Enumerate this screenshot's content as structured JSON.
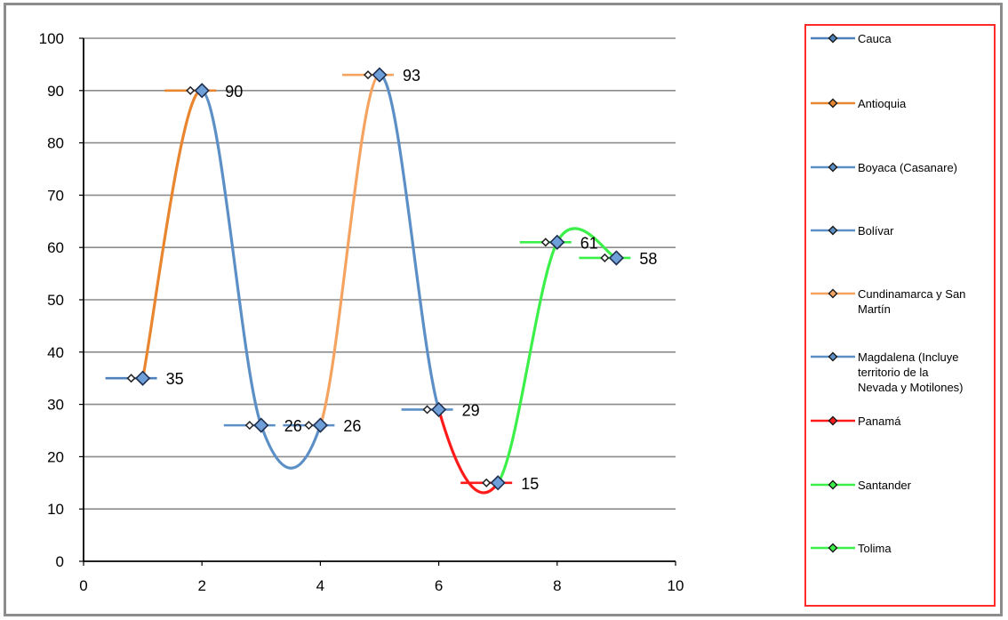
{
  "chart_data": {
    "type": "scatter",
    "title": "",
    "xlabel": "",
    "ylabel": "",
    "xlim": [
      0,
      10
    ],
    "ylim": [
      0,
      100
    ],
    "x_ticks": [
      "0",
      "2",
      "4",
      "6",
      "8",
      "10"
    ],
    "y_ticks": [
      "0",
      "10",
      "20",
      "30",
      "40",
      "50",
      "60",
      "70",
      "80",
      "90",
      "100"
    ],
    "grid": true,
    "smooth_lines": true,
    "legend_position": "right",
    "series": [
      {
        "name": "Cauca",
        "color": "#4f81bd",
        "points": [
          {
            "x": 1,
            "y": 35,
            "label": "35"
          }
        ]
      },
      {
        "name": "Antioquia",
        "color": "#e8852e",
        "points": [
          {
            "x": 2,
            "y": 90,
            "label": "90"
          }
        ]
      },
      {
        "name": "Boyaca (Casanare)",
        "color": "#5b8fc6",
        "points": [
          {
            "x": 3,
            "y": 26,
            "label": "26"
          }
        ]
      },
      {
        "name": "Bolívar",
        "color": "#5b8fc6",
        "points": [
          {
            "x": 4,
            "y": 26,
            "label": "26"
          }
        ]
      },
      {
        "name": "Cundinamarca  y San Martín",
        "color": "#f4a460",
        "points": [
          {
            "x": 5,
            "y": 93,
            "label": "93"
          }
        ]
      },
      {
        "name": "Magdalena (Incluye territorio de la Nevada y Motilones)",
        "color": "#5b8fc6",
        "points": [
          {
            "x": 6,
            "y": 29,
            "label": "29"
          }
        ]
      },
      {
        "name": "Panamá",
        "color": "#ff1a1a",
        "points": [
          {
            "x": 7,
            "y": 15,
            "label": "15"
          }
        ]
      },
      {
        "name": "Santander",
        "color": "#3cf04a",
        "points": [
          {
            "x": 8,
            "y": 61,
            "label": "61"
          }
        ]
      },
      {
        "name": "Tolima",
        "color": "#3cf04a",
        "points": [
          {
            "x": 9,
            "y": 58,
            "label": "58"
          }
        ]
      }
    ],
    "legend_lines": [
      [
        "Cauca"
      ],
      [
        "Antioquia"
      ],
      [
        "Boyaca (Casanare)"
      ],
      [
        "Bolívar"
      ],
      [
        "Cundinamarca  y San",
        "Martín"
      ],
      [
        "Magdalena (Incluye",
        "territorio de la",
        "Nevada y Motilones)"
      ],
      [
        "Panamá"
      ],
      [
        "Santander"
      ],
      [
        "Tolima"
      ]
    ]
  },
  "colors": {
    "legend_border": "#ff2a2a",
    "gridline": "#8c8c8c",
    "marker_fill": "#6f9fd8",
    "marker_stroke": "#1f2f4f"
  }
}
